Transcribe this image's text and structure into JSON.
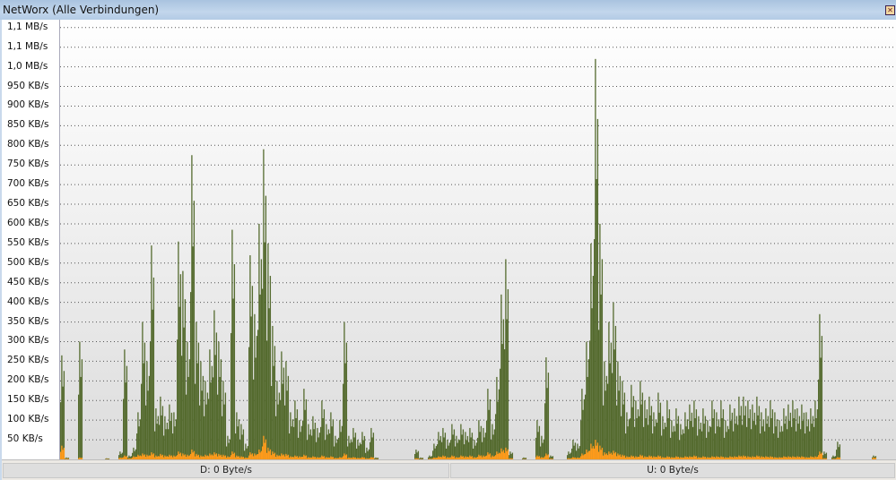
{
  "window": {
    "title": "NetWorx (Alle Verbindungen)",
    "close_icon": "close-icon"
  },
  "chart_data": {
    "type": "bar",
    "title": "",
    "ylabel": "",
    "xlabel": "",
    "ylim": [
      0,
      1120
    ],
    "grid": true,
    "colors": {
      "download": "#556b2f",
      "upload": "#ff9a1a"
    },
    "y_ticks": [
      {
        "value": 50,
        "label": "50 KB/s"
      },
      {
        "value": 100,
        "label": "100 KB/s"
      },
      {
        "value": 150,
        "label": "150 KB/s"
      },
      {
        "value": 200,
        "label": "200 KB/s"
      },
      {
        "value": 250,
        "label": "250 KB/s"
      },
      {
        "value": 300,
        "label": "300 KB/s"
      },
      {
        "value": 350,
        "label": "350 KB/s"
      },
      {
        "value": 400,
        "label": "400 KB/s"
      },
      {
        "value": 450,
        "label": "450 KB/s"
      },
      {
        "value": 500,
        "label": "500 KB/s"
      },
      {
        "value": 550,
        "label": "550 KB/s"
      },
      {
        "value": 600,
        "label": "600 KB/s"
      },
      {
        "value": 650,
        "label": "650 KB/s"
      },
      {
        "value": 700,
        "label": "700 KB/s"
      },
      {
        "value": 750,
        "label": "750 KB/s"
      },
      {
        "value": 800,
        "label": "800 KB/s"
      },
      {
        "value": 850,
        "label": "850 KB/s"
      },
      {
        "value": 900,
        "label": "900 KB/s"
      },
      {
        "value": 950,
        "label": "950 KB/s"
      },
      {
        "value": 1000,
        "label": "1,0 MB/s"
      },
      {
        "value": 1050,
        "label": "1,1 MB/s"
      },
      {
        "value": 1100,
        "label": "1,1 MB/s"
      }
    ],
    "series": [
      {
        "key": "download",
        "values": [
          265,
          5,
          0,
          0,
          300,
          0,
          0,
          0,
          0,
          0,
          3,
          0,
          0,
          20,
          280,
          10,
          30,
          120,
          350,
          250,
          545,
          130,
          160,
          110,
          140,
          120,
          555,
          480,
          300,
          775,
          350,
          250,
          200,
          280,
          380,
          300,
          200,
          60,
          585,
          120,
          90,
          40,
          520,
          370,
          600,
          790,
          550,
          340,
          200,
          275,
          250,
          120,
          150,
          100,
          180,
          90,
          110,
          80,
          150,
          90,
          120,
          60,
          100,
          350,
          60,
          80,
          50,
          70,
          30,
          80,
          5,
          0,
          0,
          0,
          0,
          0,
          0,
          0,
          0,
          25,
          5,
          0,
          10,
          40,
          70,
          80,
          50,
          90,
          60,
          90,
          70,
          80,
          50,
          100,
          80,
          180,
          90,
          210,
          420,
          510,
          20,
          0,
          0,
          5,
          0,
          0,
          100,
          60,
          260,
          10,
          0,
          0,
          0,
          20,
          50,
          40,
          180,
          300,
          550,
          1020,
          600,
          250,
          350,
          400,
          250,
          200,
          120,
          190,
          150,
          200,
          150,
          160,
          120,
          170,
          110,
          150,
          100,
          130,
          90,
          120,
          140,
          150,
          110,
          130,
          100,
          150,
          120,
          150,
          100,
          140,
          130,
          160,
          160,
          150,
          140,
          160,
          120,
          130,
          150,
          120,
          100,
          130,
          140,
          150,
          130,
          140,
          120,
          130,
          150,
          370,
          20,
          0,
          10,
          45,
          0,
          0,
          0,
          0,
          0,
          0,
          0,
          10,
          0,
          0,
          0,
          0,
          0
        ]
      },
      {
        "key": "upload",
        "values": [
          35,
          2,
          0,
          0,
          5,
          0,
          0,
          0,
          0,
          0,
          1,
          0,
          0,
          5,
          10,
          3,
          8,
          12,
          15,
          12,
          18,
          10,
          14,
          10,
          12,
          10,
          20,
          15,
          12,
          25,
          14,
          10,
          12,
          15,
          18,
          14,
          12,
          8,
          20,
          10,
          8,
          5,
          18,
          15,
          25,
          60,
          30,
          20,
          12,
          15,
          14,
          8,
          10,
          8,
          12,
          6,
          8,
          6,
          10,
          6,
          8,
          4,
          6,
          15,
          5,
          6,
          4,
          6,
          3,
          6,
          1,
          0,
          0,
          0,
          0,
          0,
          0,
          0,
          0,
          3,
          1,
          0,
          2,
          5,
          8,
          10,
          6,
          10,
          6,
          10,
          8,
          10,
          6,
          12,
          10,
          18,
          10,
          20,
          28,
          30,
          3,
          0,
          0,
          1,
          0,
          0,
          10,
          6,
          15,
          2,
          0,
          0,
          0,
          3,
          6,
          5,
          15,
          25,
          40,
          50,
          35,
          18,
          20,
          22,
          15,
          12,
          8,
          10,
          8,
          12,
          8,
          10,
          8,
          10,
          6,
          8,
          6,
          8,
          6,
          8,
          8,
          10,
          6,
          8,
          6,
          8,
          8,
          8,
          6,
          8,
          8,
          10,
          10,
          8,
          8,
          10,
          8,
          8,
          8,
          6,
          6,
          8,
          8,
          8,
          8,
          8,
          6,
          8,
          8,
          20,
          3,
          0,
          2,
          6,
          0,
          0,
          0,
          0,
          0,
          0,
          0,
          5,
          0,
          0,
          0,
          0,
          0
        ]
      }
    ]
  },
  "status": {
    "download": "D: 0 Byte/s",
    "upload": "U: 0 Byte/s"
  }
}
